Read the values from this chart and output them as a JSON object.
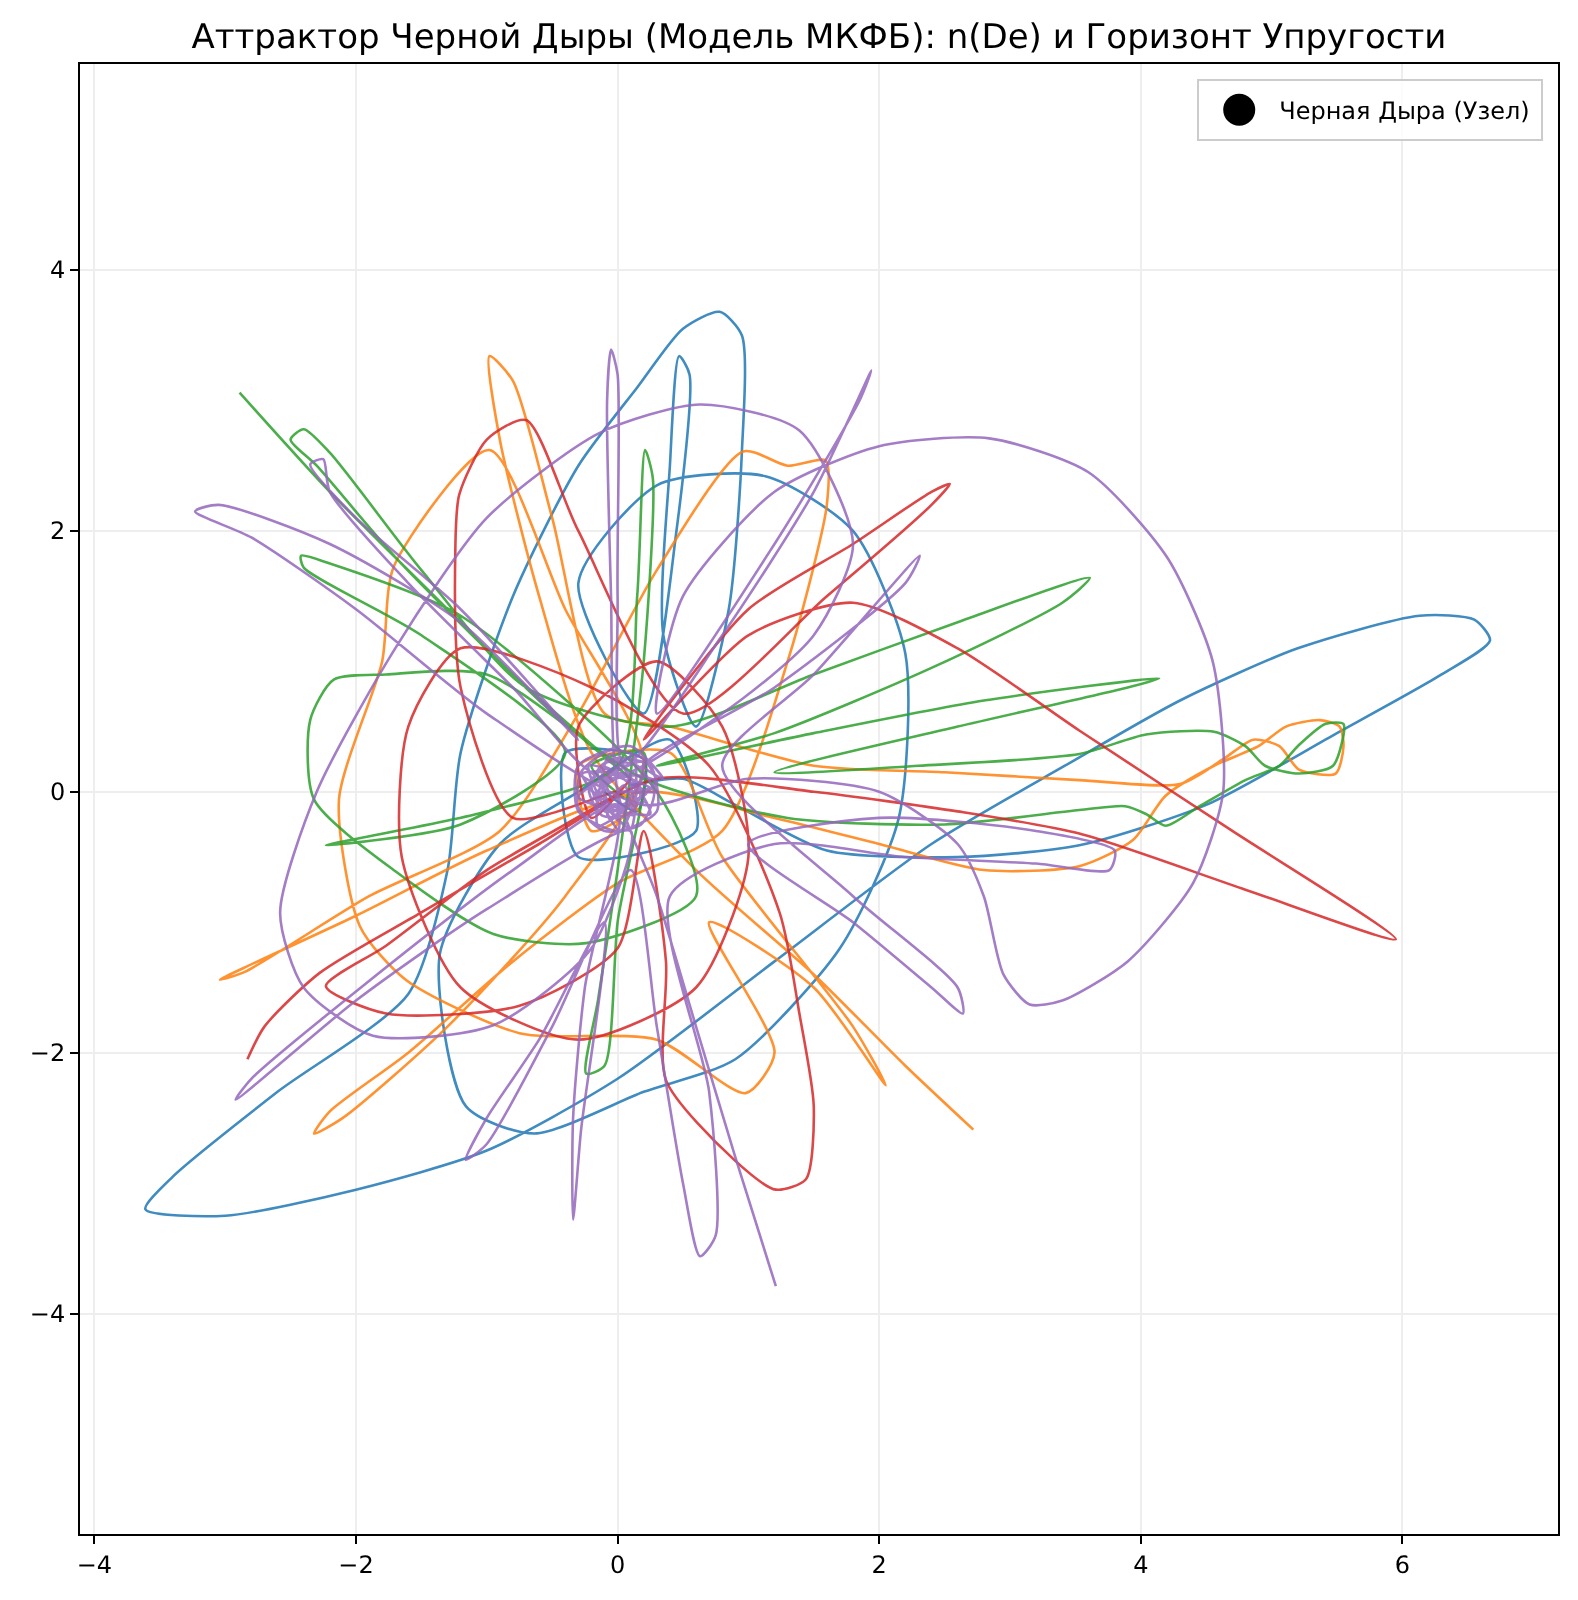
{
  "chart_data": {
    "type": "line",
    "title": "Аттрактор Черной Дыры (Модель МКФБ): n(De) и Горизонт Упругости",
    "xlim": [
      -4.11,
      7.19
    ],
    "ylim": [
      -5.69,
      5.58
    ],
    "xticks": [
      {
        "value": -4,
        "label": "−4"
      },
      {
        "value": -2,
        "label": "−2"
      },
      0,
      2,
      4,
      6
    ],
    "yticks": [
      {
        "value": -4,
        "label": "−4"
      },
      {
        "value": -2,
        "label": "−2"
      },
      0,
      2,
      4
    ],
    "grid": true,
    "legend": "top right",
    "line_style": "solid",
    "series": [
      {
        "color": "#1f77b4",
        "x": [
          0.1,
          0.5,
          0.9,
          1.6,
          2.6,
          3.53,
          4.5,
          5.5,
          6.3,
          6.67,
          6.55,
          6.13,
          5.2,
          4.3,
          3.42,
          2.4,
          1.2,
          0.0,
          -1.0,
          -2.0,
          -3.0,
          -3.61,
          -3.4,
          -2.6,
          -1.6,
          -1.3,
          -1.2,
          -0.8,
          -0.3,
          0.15,
          0.5,
          0.78,
          0.95,
          0.95,
          0.85,
          0.6,
          0.35,
          0.4,
          0.47,
          0.55,
          0.45,
          0.2,
          -0.3,
          0.3,
          1.13,
          1.8,
          2.2,
          2.15,
          1.7,
          0.9,
          0.2,
          -0.64,
          -1.16,
          -1.36,
          -0.9,
          -0.3,
          0.4,
          0.6,
          -0.3,
          -0.4,
          0.2,
          0.15,
          -0.1
        ],
        "values": [
          0.05,
          0.1,
          -0.1,
          -0.45,
          -0.5,
          -0.41,
          -0.1,
          0.45,
          0.9,
          1.16,
          1.32,
          1.35,
          1.1,
          0.7,
          0.2,
          -0.4,
          -1.3,
          -2.2,
          -2.75,
          -3.05,
          -3.25,
          -3.2,
          -2.95,
          -2.3,
          -1.55,
          -0.6,
          0.3,
          1.5,
          2.5,
          3.1,
          3.55,
          3.68,
          3.5,
          2.6,
          1.4,
          0.5,
          1.2,
          2.5,
          3.34,
          3.2,
          2.0,
          0.6,
          1.6,
          2.35,
          2.42,
          2.0,
          1.06,
          -0.2,
          -1.2,
          -2.05,
          -2.3,
          -2.62,
          -2.41,
          -1.25,
          -0.4,
          0.0,
          0.4,
          -0.3,
          -0.5,
          0.3,
          0.25,
          -0.15,
          0.0
        ]
      },
      {
        "color": "#ff7f0e",
        "x": [
          2.72,
          2.2,
          1.5,
          0.6,
          -0.2,
          -0.6,
          -0.9,
          -0.98,
          -0.8,
          -0.5,
          -0.1,
          0.4,
          1.5,
          2.5,
          3.53,
          4.3,
          4.63,
          4.86,
          5.06,
          5.21,
          5.49,
          5.55,
          5.52,
          5.37,
          5.11,
          4.9,
          4.56,
          4.19,
          3.94,
          3.53,
          2.8,
          2.0,
          1.2,
          0.2,
          -1.0,
          -2.0,
          -3.04,
          -2.85,
          -1.9,
          -0.9,
          -0.3,
          0.3,
          0.96,
          1.3,
          1.59,
          1.6,
          1.3,
          0.8,
          0.0,
          -0.8,
          -1.6,
          -2.2,
          -2.32,
          -2.1,
          -1.3,
          -0.4,
          0.2,
          -0.4,
          -0.98,
          -1.71,
          -1.8,
          -2.13,
          -1.97,
          -1.62,
          -0.75,
          0.3,
          0.98,
          1.2,
          0.7,
          1.5,
          2.05,
          1.8,
          0.8,
          0.4,
          -0.3,
          -0.2,
          0.15,
          0.0
        ],
        "values": [
          -2.59,
          -2.1,
          -1.4,
          -0.6,
          0.3,
          1.5,
          2.7,
          3.34,
          3.15,
          2.1,
          0.6,
          0.5,
          0.2,
          0.15,
          0.09,
          0.06,
          0.25,
          0.4,
          0.35,
          0.17,
          0.14,
          0.35,
          0.5,
          0.55,
          0.5,
          0.35,
          0.2,
          -0.03,
          -0.37,
          -0.57,
          -0.6,
          -0.4,
          -0.2,
          0.0,
          -0.45,
          -0.95,
          -1.44,
          -1.38,
          -0.8,
          -0.3,
          0.6,
          1.7,
          2.61,
          2.5,
          2.54,
          2.2,
          1.0,
          -0.3,
          -0.7,
          -1.3,
          -2.0,
          -2.45,
          -2.62,
          -2.5,
          -1.8,
          -0.8,
          0.2,
          1.4,
          2.62,
          1.73,
          1.0,
          -0.06,
          -1.03,
          -1.44,
          -1.85,
          -1.9,
          -2.31,
          -2.0,
          -1.0,
          -1.5,
          -2.25,
          -1.8,
          -0.5,
          0.3,
          0.2,
          -0.3,
          -0.1,
          0.0
        ]
      },
      {
        "color": "#2ca02c",
        "x": [
          -2.89,
          -2.2,
          -1.4,
          -0.6,
          0.1,
          -0.8,
          -1.7,
          -2.3,
          -2.5,
          -2.4,
          -2.2,
          -1.5,
          -0.7,
          0.4,
          1.5,
          2.6,
          3.61,
          3.4,
          2.4,
          1.2,
          0.3,
          1.5,
          2.8,
          4.14,
          3.9,
          2.6,
          1.2,
          2.3,
          3.53,
          4.04,
          4.56,
          4.8,
          4.95,
          5.21,
          5.47,
          5.55,
          5.41,
          5.2,
          5.06,
          4.8,
          4.45,
          4.19,
          4.04,
          3.88,
          3.53,
          2.5,
          1.3,
          0.2,
          -1.0,
          -1.77,
          -2.17,
          -2.35,
          -2.32,
          -1.67,
          -0.95,
          -0.24,
          0.6,
          0.3,
          -1.2,
          -2.2,
          -2.42,
          -2.4,
          -1.5,
          -0.4,
          -1.2,
          -2.23,
          -2.1,
          -1.0,
          0.0,
          0.15,
          0.21,
          0.27,
          0.2,
          0.0,
          -0.15,
          -0.24,
          -0.1,
          0.0,
          0.2,
          -0.2,
          0.05
        ],
        "values": [
          3.06,
          2.3,
          1.5,
          0.7,
          0.1,
          0.9,
          1.8,
          2.5,
          2.7,
          2.78,
          2.6,
          1.7,
          0.8,
          0.5,
          0.9,
          1.3,
          1.64,
          1.45,
          0.95,
          0.45,
          0.2,
          0.45,
          0.7,
          0.87,
          0.8,
          0.5,
          0.15,
          0.2,
          0.29,
          0.44,
          0.46,
          0.35,
          0.2,
          0.14,
          0.2,
          0.52,
          0.52,
          0.35,
          0.2,
          0.09,
          -0.11,
          -0.26,
          -0.17,
          -0.11,
          -0.14,
          -0.25,
          -0.2,
          0.1,
          0.9,
          0.9,
          0.86,
          0.55,
          -0.06,
          -0.63,
          -1.09,
          -1.16,
          -0.8,
          0.0,
          1.35,
          1.75,
          1.81,
          1.72,
          1.2,
          0.3,
          -0.25,
          -0.41,
          -0.38,
          -0.15,
          0.2,
          1.5,
          2.62,
          2.4,
          1.0,
          -0.6,
          -1.6,
          -2.16,
          -2.1,
          -1.0,
          0.3,
          0.2,
          -0.05
        ]
      },
      {
        "color": "#d62728",
        "x": [
          -2.83,
          -2.7,
          -2.28,
          -1.51,
          -0.6,
          0.3,
          1.5,
          2.6,
          3.53,
          4.8,
          5.95,
          4.7,
          3.53,
          2.6,
          1.8,
          1.0,
          0.2,
          1.0,
          1.8,
          2.4,
          2.54,
          2.4,
          1.6,
          0.5,
          -0.3,
          -0.7,
          -1.0,
          -1.21,
          -1.24,
          -1.2,
          -0.8,
          0.0,
          -1.0,
          -1.77,
          -2.23,
          -1.77,
          -0.75,
          0.0,
          0.2,
          0.37,
          0.37,
          0.89,
          1.21,
          1.44,
          1.5,
          1.39,
          1.24,
          0.7,
          -0.2,
          -1.2,
          -1.6,
          -1.65,
          -1.2,
          -0.3,
          0.6,
          1.0,
          0.8,
          0.3,
          -0.3,
          -0.2,
          0.1
        ],
        "values": [
          -2.05,
          -1.8,
          -1.39,
          -0.93,
          -0.4,
          0.1,
          0.0,
          -0.15,
          -0.32,
          -0.75,
          -1.13,
          -0.3,
          0.47,
          1.1,
          1.45,
          1.2,
          0.4,
          1.4,
          1.9,
          2.3,
          2.36,
          2.2,
          1.5,
          0.6,
          2.0,
          2.85,
          2.7,
          2.28,
          1.88,
          0.8,
          -0.2,
          0.0,
          -0.6,
          -1.18,
          -1.49,
          -1.7,
          -1.64,
          -1.2,
          -0.3,
          -1.3,
          -2.21,
          -2.82,
          -3.05,
          -2.97,
          -2.41,
          -1.7,
          -0.93,
          0.2,
          0.8,
          1.1,
          0.5,
          -0.5,
          -1.5,
          -1.9,
          -1.5,
          -0.5,
          0.5,
          1.0,
          0.5,
          -0.2,
          0.1
        ]
      },
      {
        "color": "#9467bd",
        "x": [
          1.21,
          0.9,
          0.6,
          0.3,
          0.0,
          -0.05,
          -0.08,
          -0.05,
          0.0,
          0.0,
          0.05,
          0.8,
          1.5,
          1.94,
          1.85,
          1.2,
          0.3,
          0.5,
          1.2,
          2.0,
          2.84,
          3.6,
          4.2,
          4.55,
          4.63,
          4.4,
          3.9,
          3.4,
          3.15,
          2.95,
          2.8,
          2.6,
          2.0,
          1.0,
          0.2,
          -1.0,
          -2.0,
          -2.8,
          -3.23,
          -3.05,
          -2.2,
          -1.2,
          -0.3,
          -1.2,
          -2.0,
          -2.35,
          -2.25,
          -2.2,
          -1.6,
          -0.8,
          -0.1,
          0.8,
          1.5,
          1.8,
          1.39,
          0.63,
          -0.14,
          -1.0,
          -1.7,
          -2.3,
          -2.58,
          -2.4,
          -1.87,
          -0.95,
          -0.2,
          0.1,
          -1.0,
          -2.0,
          -2.92,
          -2.8,
          -1.9,
          -0.8,
          0.0,
          -0.25,
          -0.34,
          -0.34,
          -0.28,
          -0.1,
          -0.6,
          -1.0,
          -1.16,
          -1.0,
          -0.5,
          0.1,
          0.3,
          0.5,
          0.63,
          0.75,
          0.7,
          0.4,
          1.2,
          2.2,
          3.2,
          3.76,
          3.8,
          3.2,
          2.0,
          1.0,
          1.8,
          2.4,
          2.64,
          2.6,
          1.8,
          0.8,
          1.5,
          2.31,
          2.2,
          1.2,
          0.2,
          0.35,
          0.1,
          -0.3,
          -0.3,
          0.0,
          0.3,
          0.25,
          -0.05,
          -0.2,
          -0.1,
          0.1,
          0.05,
          0.0,
          0.3,
          0.2,
          -0.05,
          -0.28,
          -0.3,
          -0.1,
          0.18,
          0.28,
          0.15,
          -0.1,
          -0.22,
          -0.12,
          0.1,
          0.18,
          0.05,
          -0.08,
          -0.03,
          0.02,
          0.3,
          -0.22,
          0.02,
          0.19,
          -0.3,
          0.25,
          -0.06,
          -0.15,
          0.29,
          -0.27,
          0.1,
          0.12,
          -0.2,
          0.21,
          -0.1,
          -0.06,
          0.19,
          -0.22,
          0.13,
          0.03,
          -0.17,
          0.22,
          -0.15,
          0.0,
          0.0
        ],
        "values": [
          -3.79,
          -2.8,
          -1.8,
          -0.8,
          0.0,
          1.5,
          3.0,
          3.39,
          3.2,
          1.5,
          0.2,
          1.2,
          2.3,
          3.23,
          3.0,
          1.9,
          0.6,
          1.5,
          2.3,
          2.65,
          2.71,
          2.45,
          1.8,
          1.0,
          0.0,
          -0.7,
          -1.3,
          -1.6,
          -1.63,
          -1.4,
          -0.8,
          -0.4,
          0.0,
          0.1,
          -0.1,
          0.6,
          1.4,
          1.95,
          2.15,
          2.2,
          1.9,
          1.3,
          0.4,
          1.4,
          2.1,
          2.51,
          2.55,
          2.3,
          1.6,
          0.8,
          0.1,
          0.6,
          1.2,
          1.9,
          2.77,
          2.97,
          2.75,
          2.1,
          1.1,
          0.0,
          -0.93,
          -1.5,
          -1.87,
          -1.79,
          -1.2,
          -0.3,
          -0.9,
          -1.6,
          -2.36,
          -2.2,
          -1.45,
          -0.6,
          -0.1,
          -1.5,
          -2.5,
          -3.28,
          -2.6,
          -1.0,
          -1.9,
          -2.5,
          -2.82,
          -2.7,
          -1.8,
          -0.6,
          -1.8,
          -3.0,
          -3.56,
          -3.4,
          -2.3,
          -0.8,
          -0.4,
          -0.5,
          -0.55,
          -0.6,
          -0.45,
          -0.3,
          -0.2,
          -0.4,
          -1.0,
          -1.5,
          -1.7,
          -1.5,
          -0.8,
          0.2,
          0.9,
          1.81,
          1.6,
          0.8,
          0.2,
          0.1,
          0.35,
          0.2,
          -0.15,
          -0.3,
          -0.15,
          0.2,
          0.25,
          0.05,
          -0.15,
          -0.1,
          0.05,
          0.0,
          0.05,
          0.25,
          0.32,
          0.15,
          -0.12,
          -0.3,
          -0.25,
          0.0,
          0.2,
          0.22,
          0.02,
          -0.18,
          -0.17,
          0.02,
          0.12,
          0.05,
          -0.06,
          0.0,
          0.0,
          0.2,
          -0.3,
          0.23,
          -0.04,
          -0.17,
          0.29,
          -0.26,
          0.08,
          0.14,
          -0.28,
          0.28,
          -0.09,
          -0.07,
          0.19,
          -0.21,
          0.12,
          0.04,
          -0.18,
          0.22,
          -0.14,
          -0.01,
          0.16,
          -0.22,
          0.0
        ]
      },
      {
        "name": "Черная Дыра (Узел)",
        "type": "scatter",
        "marker": "circle",
        "color": "#000000",
        "values": [
          null
        ]
      }
    ]
  }
}
